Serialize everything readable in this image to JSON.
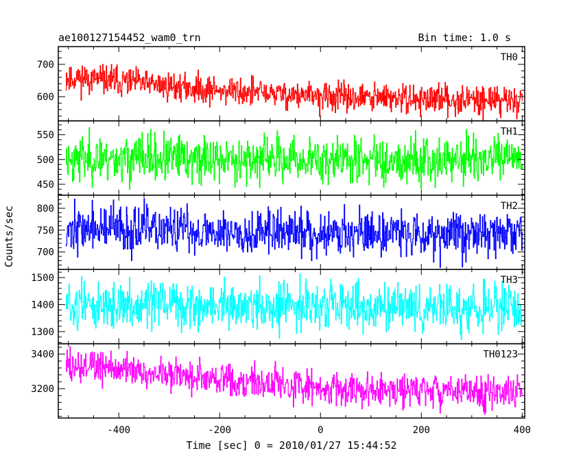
{
  "header": {
    "title": "ae100127154452_wam0_trn",
    "bin_time": "Bin time: 1.0 s"
  },
  "axes": {
    "ylabel": "Counts/sec",
    "xlabel": "Time [sec] 0 = 2010/01/27 15:44:52"
  },
  "chart_data": {
    "type": "line",
    "x_range": [
      -520,
      405
    ],
    "x_ticks": [
      -400,
      -200,
      0,
      200,
      400
    ],
    "x_minor_step": 50,
    "bin_time_s": 1.0,
    "panels": [
      {
        "name": "TH0",
        "color": "#ff0000",
        "ylim": [
          525,
          755
        ],
        "yticks": [
          600,
          700
        ],
        "y_minor_step": 20,
        "profile": [
          [
            -505,
            660
          ],
          [
            -420,
            650
          ],
          [
            -250,
            625
          ],
          [
            0,
            600
          ],
          [
            200,
            592
          ],
          [
            400,
            590
          ]
        ],
        "noise_sd": 22,
        "seed": 11
      },
      {
        "name": "TH1",
        "color": "#00ff00",
        "ylim": [
          428,
          578
        ],
        "yticks": [
          450,
          500,
          550
        ],
        "y_minor_step": 10,
        "profile": [
          [
            -505,
            502
          ],
          [
            0,
            500
          ],
          [
            400,
            500
          ]
        ],
        "noise_sd": 23,
        "seed": 23
      },
      {
        "name": "TH2",
        "color": "#0000ff",
        "ylim": [
          660,
          830
        ],
        "yticks": [
          700,
          750,
          800
        ],
        "y_minor_step": 10,
        "profile": [
          [
            -505,
            755
          ],
          [
            -250,
            748
          ],
          [
            0,
            745
          ],
          [
            400,
            742
          ]
        ],
        "noise_sd": 26,
        "seed": 37
      },
      {
        "name": "TH3",
        "color": "#00ffff",
        "ylim": [
          1255,
          1530
        ],
        "yticks": [
          1300,
          1400,
          1500
        ],
        "y_minor_step": 20,
        "profile": [
          [
            -505,
            1398
          ],
          [
            0,
            1392
          ],
          [
            400,
            1385
          ]
        ],
        "noise_sd": 42,
        "seed": 51
      },
      {
        "name": "TH0123",
        "color": "#ff00ff",
        "ylim": [
          3030,
          3460
        ],
        "yticks": [
          3200,
          3400
        ],
        "y_minor_step": 40,
        "profile": [
          [
            -505,
            3335
          ],
          [
            -420,
            3320
          ],
          [
            -250,
            3270
          ],
          [
            0,
            3205
          ],
          [
            200,
            3185
          ],
          [
            400,
            3180
          ]
        ],
        "noise_sd": 48,
        "seed": 73
      }
    ]
  }
}
